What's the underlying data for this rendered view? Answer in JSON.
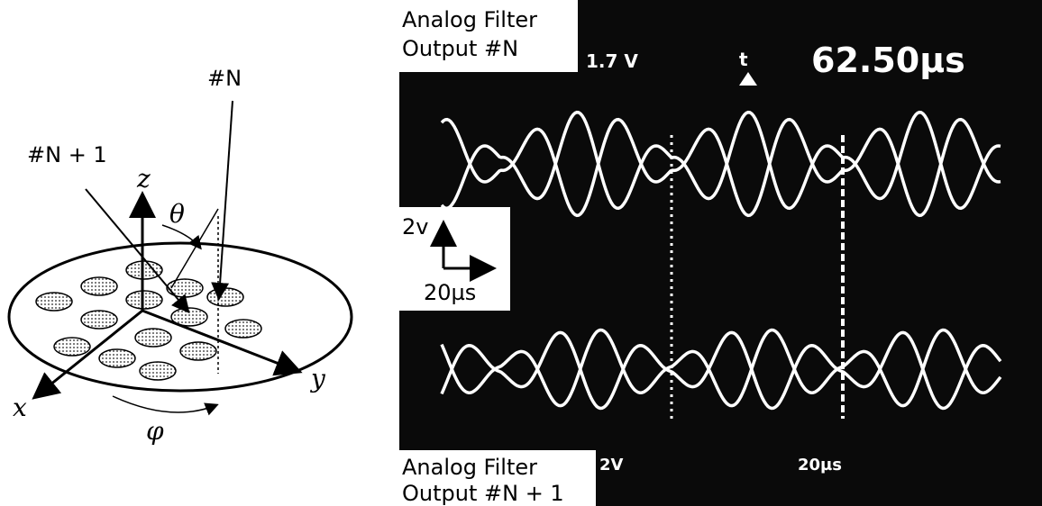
{
  "diagram": {
    "labels": {
      "n": "#N",
      "n_plus_1": "#N + 1",
      "z": "z",
      "theta": "θ",
      "x": "x",
      "y": "y",
      "phi": "φ"
    }
  },
  "scope": {
    "top_label": [
      "Analog Filter",
      "Output #N"
    ],
    "volts_readout": "1.7 V",
    "trigger": "t",
    "time_readout": "62.50µs",
    "scale_volts": "2v",
    "scale_time": "20µs",
    "bottom_volts": "2V",
    "bottom_time": "20µs",
    "bottom_label": [
      "Analog Filter",
      "Output #N + 1"
    ]
  }
}
